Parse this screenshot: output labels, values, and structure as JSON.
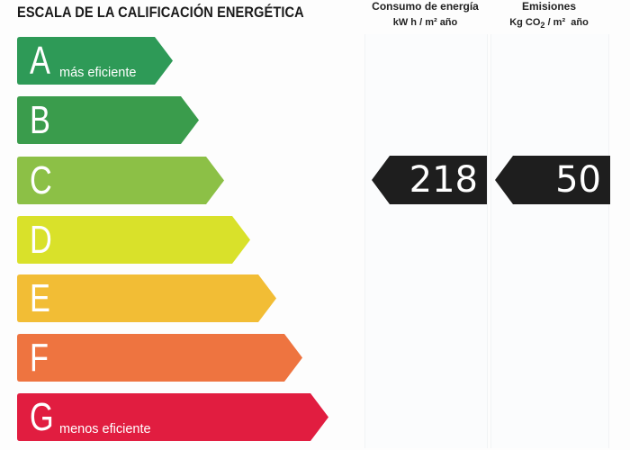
{
  "title": "ESCALA DE LA CALIFICACIÓN ENERGÉTICA",
  "columns": {
    "energy": {
      "label": "Consumo de energía",
      "unit": "kW h / m² año"
    },
    "emissions": {
      "label": "Emisiones",
      "unit_prefix": "Kg CO",
      "unit_sub": "2",
      "unit_suffix": " / m²  año"
    }
  },
  "classes": [
    {
      "letter": "A",
      "desc": "más eficiente",
      "color": "#2e9a57"
    },
    {
      "letter": "B",
      "desc": "",
      "color": "#3a9c4c"
    },
    {
      "letter": "C",
      "desc": "",
      "color": "#8cc046"
    },
    {
      "letter": "D",
      "desc": "",
      "color": "#d9e12a"
    },
    {
      "letter": "E",
      "desc": "",
      "color": "#f2bd35"
    },
    {
      "letter": "F",
      "desc": "",
      "color": "#ee7440"
    },
    {
      "letter": "G",
      "desc": "menos eficiente",
      "color": "#e11d40"
    }
  ],
  "rating": {
    "row": "C",
    "energy_value": "218",
    "emissions_value": "50",
    "color": "#1e1e1e"
  }
}
